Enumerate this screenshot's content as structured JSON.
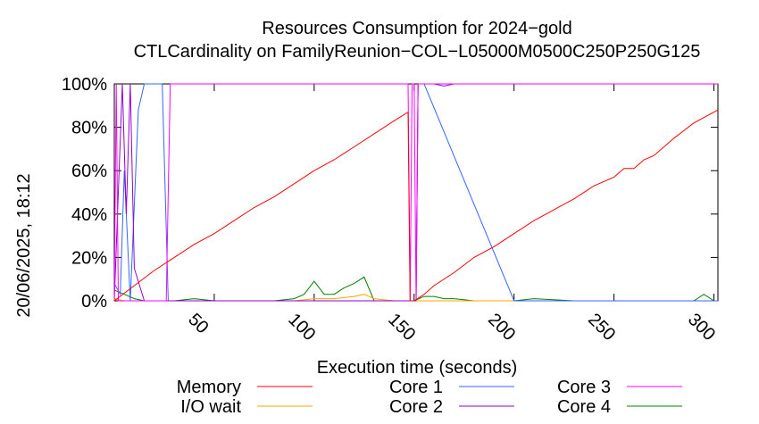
{
  "chart_data": {
    "type": "line",
    "title": "Resources Consumption for 2024−gold",
    "subtitle": "CTLCardinality on FamilyReunion−COL−L05000M0500C250P250G125",
    "xlabel": "Execution time (seconds)",
    "ylabel": "",
    "side_label": "20/06/2025, 18:12",
    "xlim": [
      0,
      302
    ],
    "ylim": [
      0,
      100
    ],
    "x_ticks": [
      50,
      100,
      150,
      200,
      250,
      300
    ],
    "y_ticks": [
      0,
      20,
      40,
      60,
      80,
      100
    ],
    "y_tick_labels": [
      "0%",
      "20%",
      "40%",
      "60%",
      "80%",
      "100%"
    ],
    "grid": false,
    "legend_position": "bottom",
    "series": [
      {
        "name": "Memory",
        "color": "#ff0000",
        "x": [
          0,
          10,
          20,
          30,
          40,
          50,
          60,
          70,
          80,
          90,
          100,
          110,
          120,
          130,
          140,
          147,
          148,
          150,
          155,
          160,
          170,
          180,
          190,
          200,
          210,
          220,
          230,
          240,
          250,
          255,
          260,
          265,
          270,
          280,
          290,
          302
        ],
        "y": [
          0,
          7,
          14,
          20,
          26,
          31,
          37,
          43,
          48,
          54,
          60,
          65,
          71,
          77,
          83,
          87,
          0,
          0,
          3,
          7,
          13,
          20,
          25,
          31,
          37,
          42,
          47,
          53,
          57,
          61,
          61,
          65,
          67,
          75,
          82,
          88
        ]
      },
      {
        "name": "I/O wait",
        "color": "#ffa500",
        "x": [
          0,
          5,
          20,
          40,
          60,
          80,
          90,
          100,
          110,
          120,
          125,
          130,
          140,
          150,
          160,
          200,
          250,
          300,
          302
        ],
        "y": [
          1,
          0,
          0,
          0,
          0,
          0,
          0,
          1,
          1,
          2,
          3,
          1,
          0,
          0,
          0,
          0,
          0,
          0,
          0
        ]
      },
      {
        "name": "Core 1",
        "color": "#3366ff",
        "x": [
          0,
          3,
          5,
          8,
          12,
          15,
          20,
          24,
          27,
          30,
          60,
          100,
          147,
          148,
          150,
          151,
          152,
          153,
          155,
          200,
          250,
          300,
          302
        ],
        "y": [
          8,
          3,
          60,
          0,
          88,
          100,
          100,
          100,
          0,
          0,
          0,
          0,
          0,
          0,
          0,
          0,
          100,
          100,
          100,
          0,
          0,
          0,
          0
        ]
      },
      {
        "name": "Core 2",
        "color": "#9400d3",
        "x": [
          0,
          2,
          4,
          6,
          8,
          10,
          15,
          20,
          150,
          151,
          152,
          153,
          160,
          165,
          170,
          200,
          250,
          300,
          302
        ],
        "y": [
          0,
          50,
          100,
          40,
          100,
          15,
          0,
          0,
          0,
          0,
          100,
          100,
          100,
          99,
          100,
          100,
          100,
          100,
          100
        ]
      },
      {
        "name": "Core 3",
        "color": "#ff00ff",
        "x": [
          0,
          1,
          2,
          3,
          26,
          27,
          28,
          29,
          30,
          147,
          148,
          149,
          150,
          151,
          152,
          200,
          250,
          300,
          302
        ],
        "y": [
          0,
          100,
          0,
          0,
          0,
          50,
          100,
          100,
          100,
          100,
          0,
          100,
          100,
          0,
          100,
          100,
          100,
          100,
          100
        ]
      },
      {
        "name": "Core 4",
        "color": "#008000",
        "x": [
          0,
          5,
          10,
          15,
          20,
          30,
          40,
          50,
          60,
          70,
          80,
          90,
          95,
          100,
          105,
          110,
          115,
          120,
          125,
          130,
          135,
          140,
          145,
          150,
          155,
          160,
          165,
          170,
          180,
          190,
          200,
          210,
          230,
          240,
          250,
          260,
          270,
          280,
          290,
          295,
          300,
          302
        ],
        "y": [
          5,
          3,
          1,
          0,
          0,
          0,
          1,
          0,
          0,
          0,
          0,
          1,
          3,
          9,
          3,
          3,
          6,
          8,
          11,
          0,
          0,
          0,
          0,
          0,
          2,
          2,
          1,
          1,
          0,
          0,
          0,
          1,
          0,
          0,
          0,
          0,
          0,
          0,
          0,
          3,
          0,
          0
        ]
      }
    ]
  }
}
